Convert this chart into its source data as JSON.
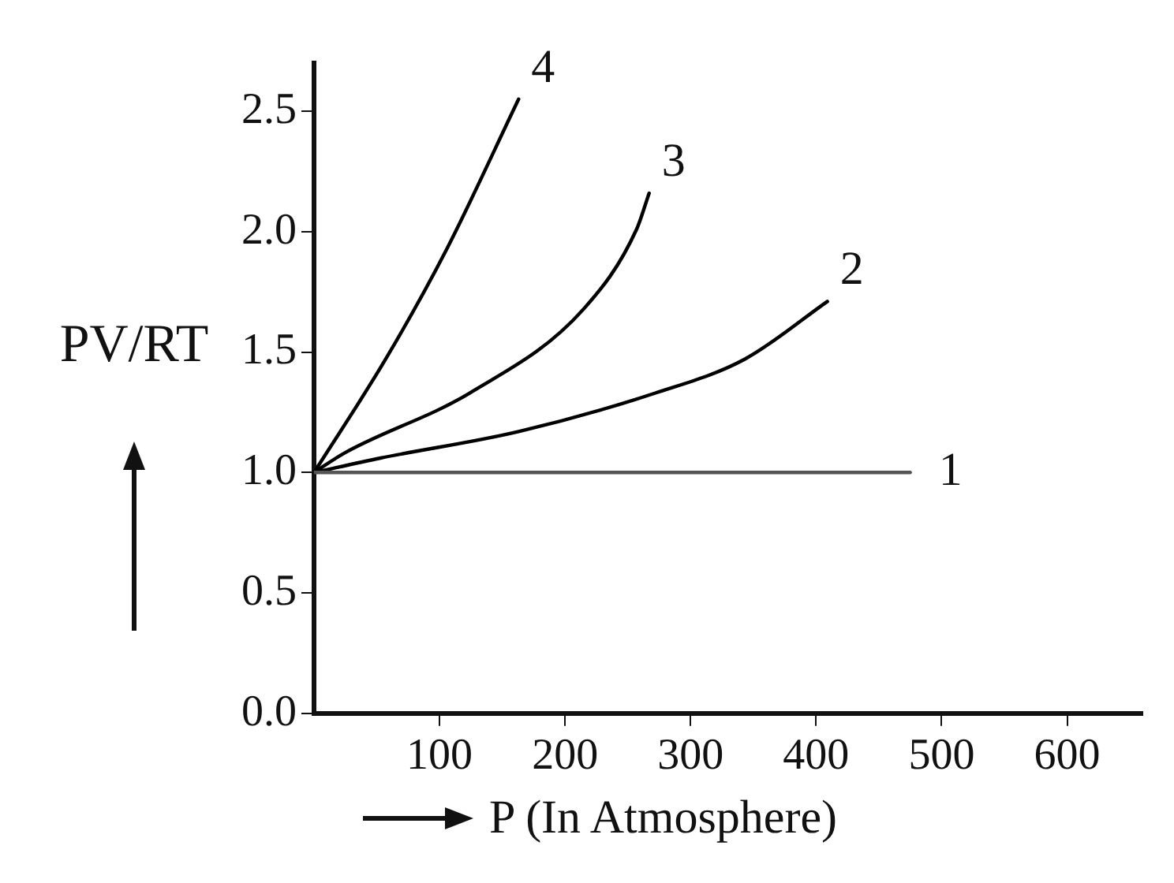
{
  "chart_data": {
    "type": "line",
    "xlabel": "P (In Atmosphere)",
    "ylabel": "PV/RT",
    "xlim": [
      0,
      660
    ],
    "xticks": [
      100,
      200,
      300,
      400,
      500,
      600
    ],
    "ylim": [
      0,
      2.7
    ],
    "yticks": [
      {
        "value": 0,
        "label": "0.0"
      },
      {
        "value": 0.5,
        "label": "0.5"
      },
      {
        "value": 1,
        "label": "1.0"
      },
      {
        "value": 1.5,
        "label": "1.5"
      },
      {
        "value": 2,
        "label": "2.0"
      },
      {
        "value": 2.5,
        "label": "2.5"
      }
    ],
    "grid": false,
    "legend": false,
    "marker": "none",
    "line_style": "solid",
    "series": [
      {
        "name": "1",
        "color": "#555555",
        "x": [
          0,
          475
        ],
        "values": [
          1.0,
          1.0
        ]
      },
      {
        "name": "2",
        "color": "#000000",
        "x": [
          0,
          53,
          163,
          272,
          343,
          409
        ],
        "values": [
          1.0,
          1.06,
          1.17,
          1.33,
          1.47,
          1.71
        ]
      },
      {
        "name": "3",
        "color": "#000000",
        "x": [
          0,
          24,
          124,
          215,
          257,
          267
        ],
        "values": [
          1.0,
          1.08,
          1.33,
          1.68,
          2.01,
          2.16
        ]
      },
      {
        "name": "4",
        "color": "#000000",
        "x": [
          0,
          57,
          105,
          163
        ],
        "values": [
          1.0,
          1.47,
          1.92,
          2.55
        ]
      }
    ]
  }
}
